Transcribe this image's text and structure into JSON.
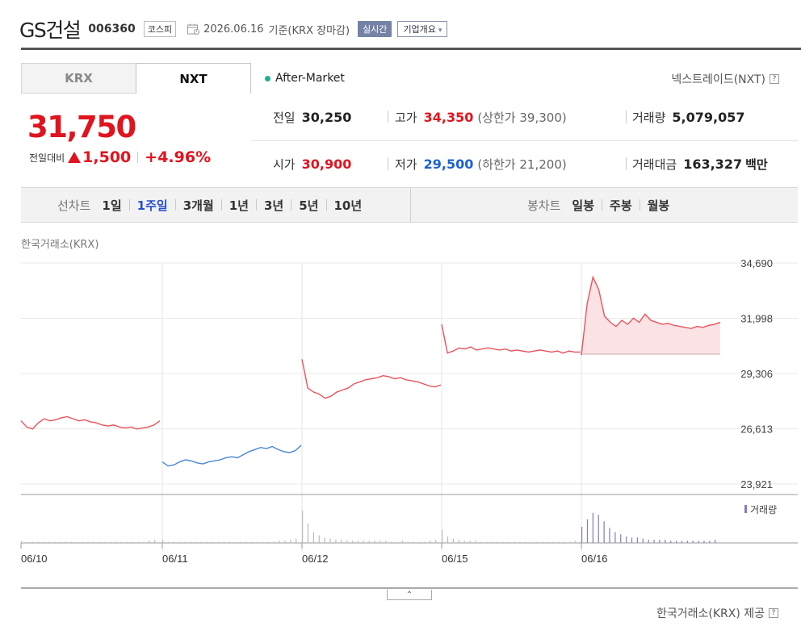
{
  "header": {
    "stock_name": "GS건설",
    "stock_code": "006360",
    "market_badge": "코스피",
    "date": "2026.06.16",
    "basis": "기준(KRX 장마감)",
    "realtime_button": "실시간",
    "company_info_button": "기업개요",
    "caret": "▾"
  },
  "tabs": [
    {
      "label": "KRX"
    },
    {
      "label": "NXT"
    }
  ],
  "after_market": "After-Market",
  "nxt_label": "넥스트레이드(NXT)",
  "help_glyph": "?",
  "price": {
    "current": "31,750",
    "change_label": "전일대비",
    "change": "1,500",
    "change_pct": "+4.96%"
  },
  "stats": {
    "prev_close": {
      "label": "전일",
      "value": "30,250"
    },
    "high": {
      "label": "고가",
      "value": "34,350",
      "sub": "(상한가 39,300)"
    },
    "volume": {
      "label": "거래량",
      "value": "5,079,057"
    },
    "open": {
      "label": "시가",
      "value": "30,900"
    },
    "low": {
      "label": "저가",
      "value": "29,500",
      "sub": "(하한가 21,200)"
    },
    "trade_value": {
      "label": "거래대금",
      "value": "163,327",
      "unit": "백만"
    }
  },
  "period_bar": {
    "line_label": "선차트",
    "line_items": [
      "1일",
      "1주일",
      "3개월",
      "1년",
      "3년",
      "5년",
      "10년"
    ],
    "active": "1주일",
    "candle_label": "봉차트",
    "candle_items": [
      "일봉",
      "주봉",
      "월봉"
    ]
  },
  "chart_caption": "한국거래소(KRX)",
  "colors": {
    "up": "#e0141e",
    "down": "#1a62d2",
    "line_up": "#e8545c",
    "line_down": "#4a86d8",
    "fill_up": "#fbdfe1",
    "volume": "#8a79c2",
    "accent": "#2a4fd1"
  },
  "chart_data": {
    "type": "line",
    "title": "",
    "y_ticks": [
      "34,690",
      "31,998",
      "29,306",
      "26,613",
      "23,921"
    ],
    "ylim": [
      23921,
      34690
    ],
    "x_ticks": [
      "06/10",
      "06/11",
      "06/12",
      "06/15",
      "06/16"
    ],
    "prev_close_line": 30250,
    "volume_legend": "거래량",
    "days": [
      {
        "date": "06/10",
        "color": "up",
        "prices": [
          27000,
          26700,
          26600,
          26900,
          27100,
          27000,
          27050,
          27150,
          27200,
          27100,
          27000,
          27050,
          26950,
          26900,
          26800,
          26750,
          26800,
          26700,
          26650,
          26700,
          26600,
          26650,
          26700,
          26800,
          27000
        ]
      },
      {
        "date": "06/11",
        "color": "down",
        "prices": [
          25000,
          24800,
          24850,
          25000,
          25100,
          25050,
          24950,
          24900,
          25000,
          25050,
          25100,
          25200,
          25250,
          25200,
          25350,
          25500,
          25600,
          25700,
          25650,
          25750,
          25600,
          25500,
          25450,
          25550,
          25800
        ]
      },
      {
        "date": "06/12",
        "color": "up",
        "prices": [
          30000,
          28600,
          28400,
          28300,
          28100,
          28200,
          28400,
          28500,
          28600,
          28800,
          28900,
          29000,
          29050,
          29100,
          29200,
          29150,
          29050,
          29100,
          29000,
          28950,
          28900,
          28800,
          28700,
          28650,
          28750
        ]
      },
      {
        "date": "06/15",
        "color": "up",
        "prices": [
          31700,
          30300,
          30400,
          30550,
          30500,
          30600,
          30450,
          30500,
          30550,
          30500,
          30450,
          30500,
          30400,
          30450,
          30400,
          30350,
          30400,
          30450,
          30400,
          30350,
          30400,
          30300,
          30400,
          30350,
          30350
        ]
      },
      {
        "date": "06/16",
        "color": "up",
        "prices": [
          30200,
          32700,
          34000,
          33400,
          32100,
          31800,
          31600,
          31900,
          31700,
          32000,
          31800,
          32200,
          31900,
          31800,
          31700,
          31750,
          31650,
          31600,
          31550,
          31500,
          31600,
          31550,
          31650,
          31700,
          31800
        ]
      }
    ],
    "volumes": [
      [
        2,
        1,
        1,
        1,
        1,
        1,
        1,
        1,
        1,
        1,
        1,
        1,
        1,
        1,
        1,
        1,
        1,
        1,
        1,
        1,
        1,
        1,
        1,
        2,
        3
      ],
      [
        3,
        1,
        1,
        1,
        1,
        1,
        1,
        1,
        1,
        1,
        1,
        1,
        1,
        1,
        1,
        1,
        1,
        1,
        1,
        1,
        1,
        2,
        2,
        3,
        4
      ],
      [
        30,
        18,
        10,
        7,
        5,
        4,
        3,
        3,
        2,
        2,
        2,
        2,
        2,
        2,
        2,
        2,
        1,
        1,
        2,
        1,
        1,
        1,
        1,
        2,
        3
      ],
      [
        12,
        6,
        4,
        3,
        2,
        2,
        2,
        1,
        1,
        1,
        1,
        1,
        1,
        1,
        1,
        1,
        1,
        1,
        1,
        1,
        1,
        1,
        1,
        1,
        2
      ],
      [
        15,
        22,
        28,
        26,
        20,
        14,
        10,
        8,
        6,
        5,
        5,
        4,
        3,
        3,
        3,
        3,
        2,
        2,
        2,
        2,
        2,
        2,
        2,
        2,
        3
      ]
    ]
  },
  "provider": "한국거래소(KRX) 제공",
  "collapse_glyph": "⌃"
}
